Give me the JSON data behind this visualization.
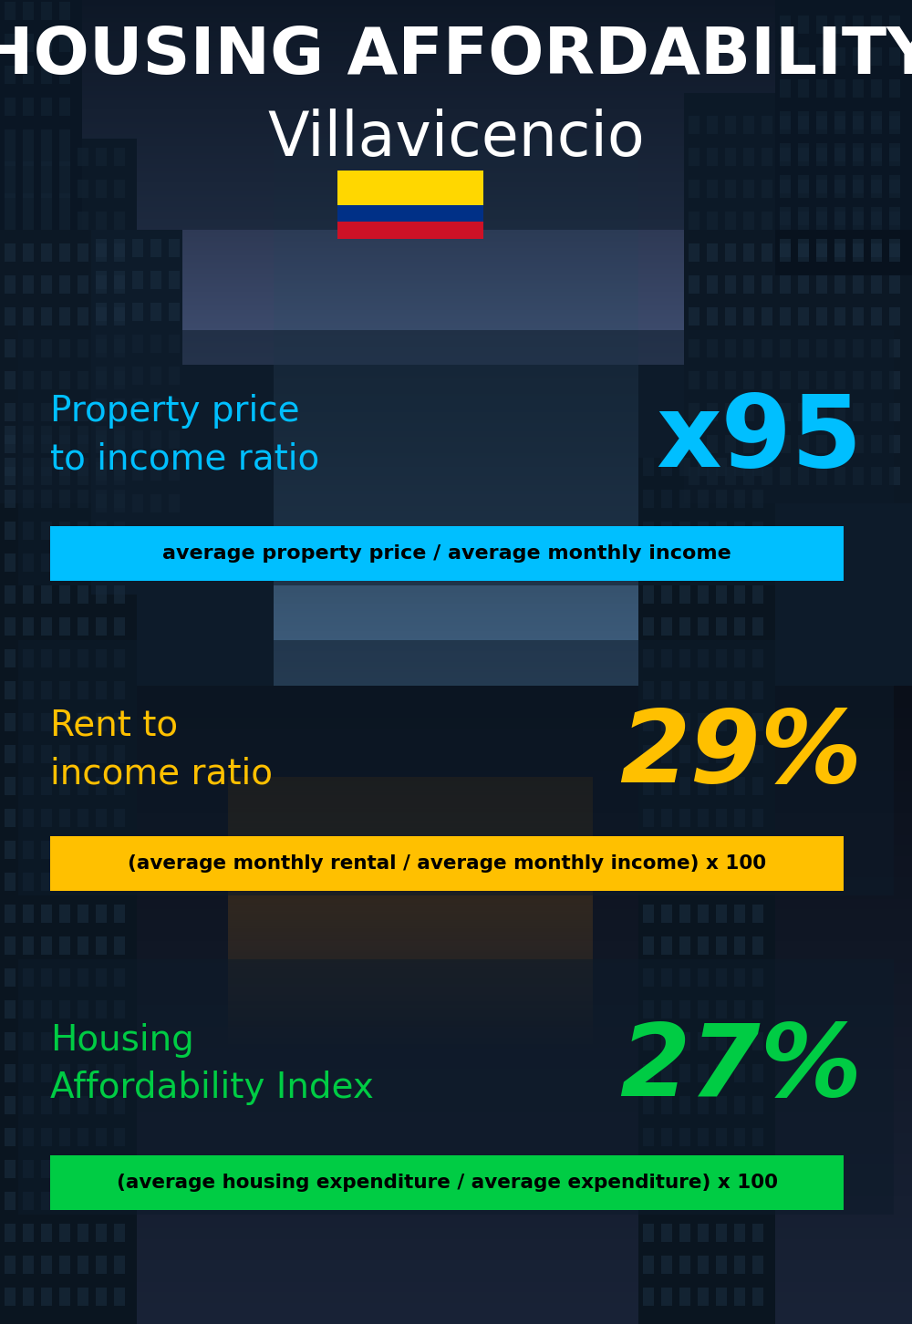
{
  "title_line1": "HOUSING AFFORDABILITY",
  "title_line2": "Villavicencio",
  "bg_color": "#0d1b2a",
  "title1_color": "#ffffff",
  "title2_color": "#ffffff",
  "section1_label": "Property price\nto income ratio",
  "section1_value": "x95",
  "section1_label_color": "#00bfff",
  "section1_value_color": "#00bfff",
  "section1_formula": "average property price / average monthly income",
  "section1_formula_bg": "#00bfff",
  "section1_formula_color": "#000000",
  "section2_label": "Rent to\nincome ratio",
  "section2_value": "29%",
  "section2_label_color": "#ffc000",
  "section2_value_color": "#ffc000",
  "section2_formula": "(average monthly rental / average monthly income) x 100",
  "section2_formula_bg": "#ffc000",
  "section2_formula_color": "#000000",
  "section3_label": "Housing\nAffordability Index",
  "section3_value": "27%",
  "section3_label_color": "#00cc44",
  "section3_value_color": "#00cc44",
  "section3_formula": "(average housing expenditure / average expenditure) x 100",
  "section3_formula_bg": "#00cc44",
  "section3_formula_color": "#000000",
  "flag_yellow": "#ffd700",
  "flag_blue": "#003087",
  "flag_red": "#ce1126",
  "building_dark": "#0a1520",
  "building_mid": "#111e2d",
  "building_light": "#162030",
  "sky_color": "#3a5068",
  "overlay_color": "#0d1b2a",
  "overlay_alpha": 0.55
}
